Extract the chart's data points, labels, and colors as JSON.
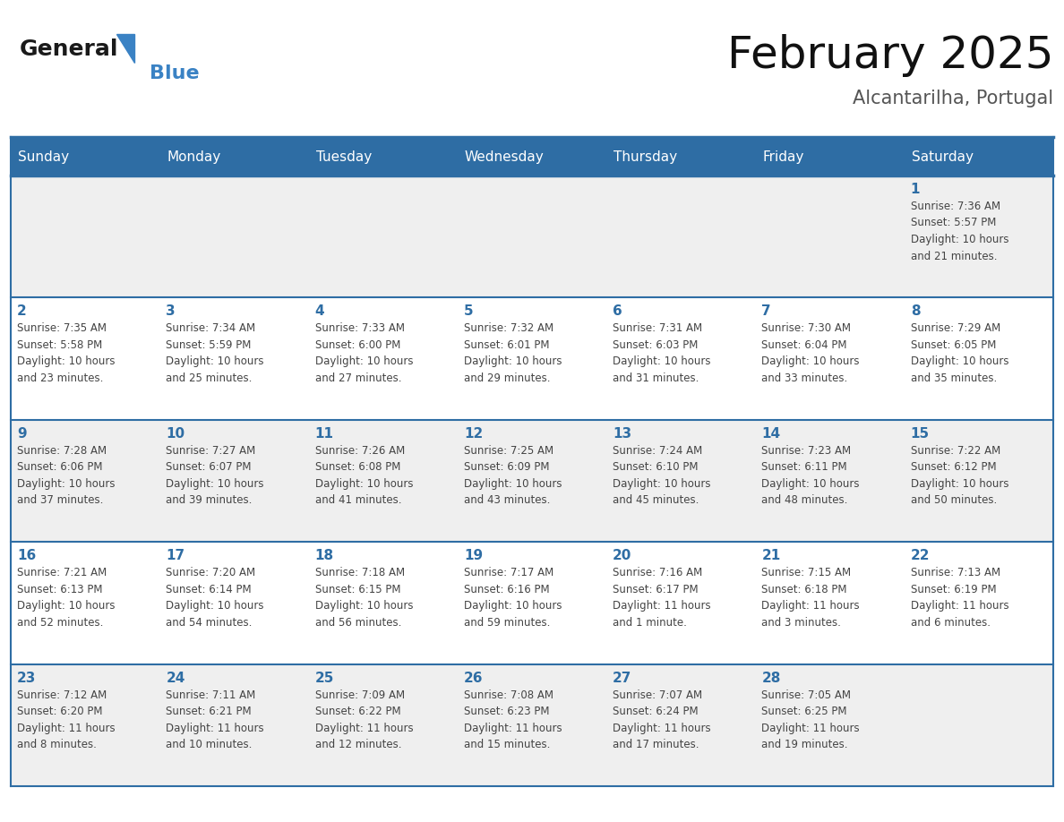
{
  "title": "February 2025",
  "subtitle": "Alcantarilha, Portugal",
  "header_bg": "#2E6DA4",
  "header_text": "#FFFFFF",
  "header_days": [
    "Sunday",
    "Monday",
    "Tuesday",
    "Wednesday",
    "Thursday",
    "Friday",
    "Saturday"
  ],
  "day_number_color": "#2E6DA4",
  "cell_text_color": "#444444",
  "row_bg_colors": [
    "#EFEFEF",
    "#FFFFFF",
    "#EFEFEF",
    "#FFFFFF",
    "#EFEFEF"
  ],
  "border_color": "#2E6DA4",
  "separator_color": "#2E6DA4",
  "logo_general_color": "#1a1a1a",
  "logo_blue_color": "#3A82C4",
  "num_cols": 7,
  "calendar": [
    [
      "",
      "",
      "",
      "",
      "",
      "",
      "1\nSunrise: 7:36 AM\nSunset: 5:57 PM\nDaylight: 10 hours\nand 21 minutes."
    ],
    [
      "2\nSunrise: 7:35 AM\nSunset: 5:58 PM\nDaylight: 10 hours\nand 23 minutes.",
      "3\nSunrise: 7:34 AM\nSunset: 5:59 PM\nDaylight: 10 hours\nand 25 minutes.",
      "4\nSunrise: 7:33 AM\nSunset: 6:00 PM\nDaylight: 10 hours\nand 27 minutes.",
      "5\nSunrise: 7:32 AM\nSunset: 6:01 PM\nDaylight: 10 hours\nand 29 minutes.",
      "6\nSunrise: 7:31 AM\nSunset: 6:03 PM\nDaylight: 10 hours\nand 31 minutes.",
      "7\nSunrise: 7:30 AM\nSunset: 6:04 PM\nDaylight: 10 hours\nand 33 minutes.",
      "8\nSunrise: 7:29 AM\nSunset: 6:05 PM\nDaylight: 10 hours\nand 35 minutes."
    ],
    [
      "9\nSunrise: 7:28 AM\nSunset: 6:06 PM\nDaylight: 10 hours\nand 37 minutes.",
      "10\nSunrise: 7:27 AM\nSunset: 6:07 PM\nDaylight: 10 hours\nand 39 minutes.",
      "11\nSunrise: 7:26 AM\nSunset: 6:08 PM\nDaylight: 10 hours\nand 41 minutes.",
      "12\nSunrise: 7:25 AM\nSunset: 6:09 PM\nDaylight: 10 hours\nand 43 minutes.",
      "13\nSunrise: 7:24 AM\nSunset: 6:10 PM\nDaylight: 10 hours\nand 45 minutes.",
      "14\nSunrise: 7:23 AM\nSunset: 6:11 PM\nDaylight: 10 hours\nand 48 minutes.",
      "15\nSunrise: 7:22 AM\nSunset: 6:12 PM\nDaylight: 10 hours\nand 50 minutes."
    ],
    [
      "16\nSunrise: 7:21 AM\nSunset: 6:13 PM\nDaylight: 10 hours\nand 52 minutes.",
      "17\nSunrise: 7:20 AM\nSunset: 6:14 PM\nDaylight: 10 hours\nand 54 minutes.",
      "18\nSunrise: 7:18 AM\nSunset: 6:15 PM\nDaylight: 10 hours\nand 56 minutes.",
      "19\nSunrise: 7:17 AM\nSunset: 6:16 PM\nDaylight: 10 hours\nand 59 minutes.",
      "20\nSunrise: 7:16 AM\nSunset: 6:17 PM\nDaylight: 11 hours\nand 1 minute.",
      "21\nSunrise: 7:15 AM\nSunset: 6:18 PM\nDaylight: 11 hours\nand 3 minutes.",
      "22\nSunrise: 7:13 AM\nSunset: 6:19 PM\nDaylight: 11 hours\nand 6 minutes."
    ],
    [
      "23\nSunrise: 7:12 AM\nSunset: 6:20 PM\nDaylight: 11 hours\nand 8 minutes.",
      "24\nSunrise: 7:11 AM\nSunset: 6:21 PM\nDaylight: 11 hours\nand 10 minutes.",
      "25\nSunrise: 7:09 AM\nSunset: 6:22 PM\nDaylight: 11 hours\nand 12 minutes.",
      "26\nSunrise: 7:08 AM\nSunset: 6:23 PM\nDaylight: 11 hours\nand 15 minutes.",
      "27\nSunrise: 7:07 AM\nSunset: 6:24 PM\nDaylight: 11 hours\nand 17 minutes.",
      "28\nSunrise: 7:05 AM\nSunset: 6:25 PM\nDaylight: 11 hours\nand 19 minutes.",
      ""
    ]
  ]
}
